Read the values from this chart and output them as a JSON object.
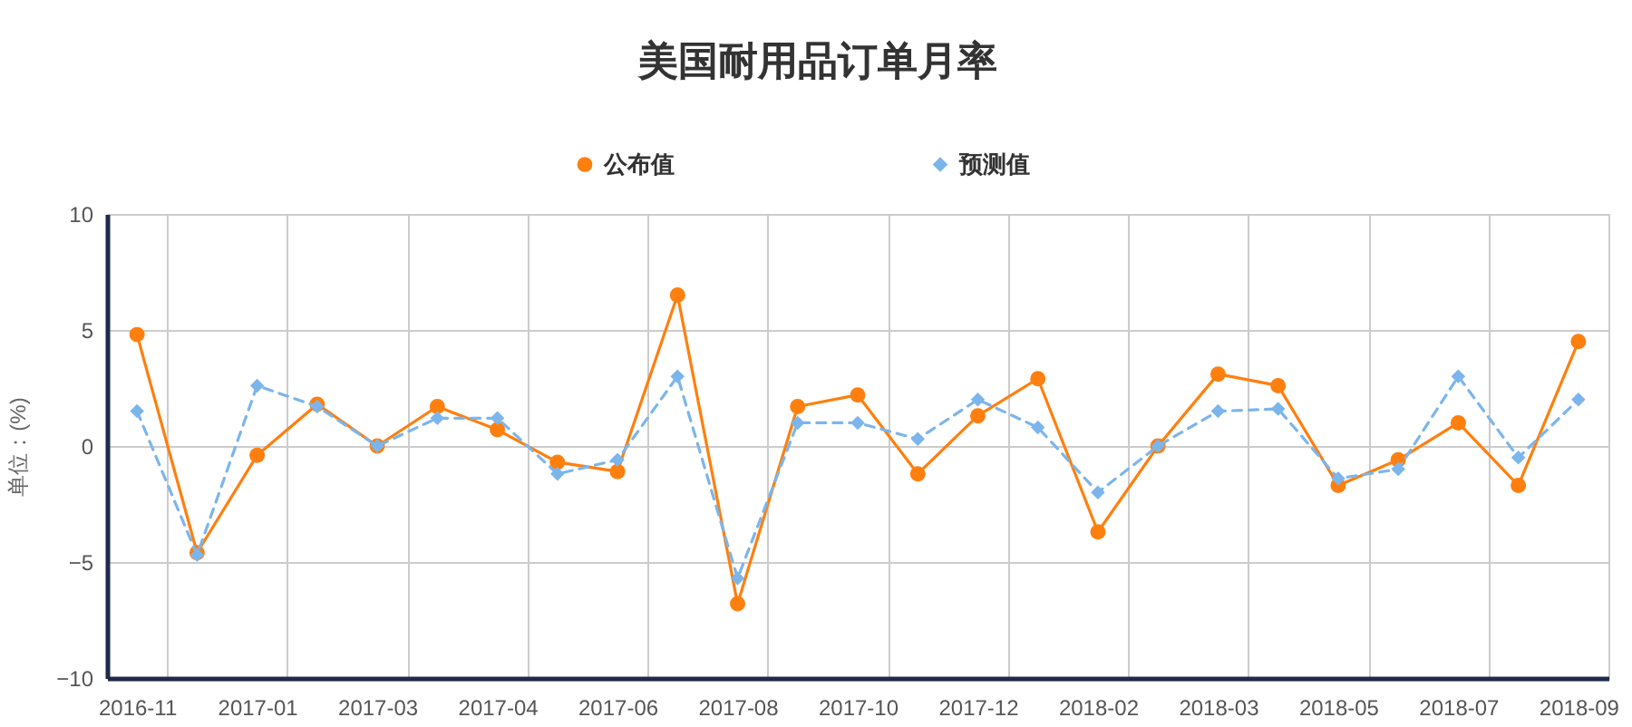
{
  "chart_data": {
    "type": "line",
    "title": "美国耐用品订单月率",
    "ylabel": "单位：(%)",
    "categories": [
      "2016-11",
      null,
      "2017-01",
      null,
      "2017-03",
      null,
      "2017-04",
      null,
      "2017-06",
      null,
      "2017-08",
      null,
      "2017-10",
      null,
      "2017-12",
      null,
      "2018-02",
      null,
      "2018-03",
      null,
      "2018-05",
      null,
      "2018-07",
      null,
      "2018-09"
    ],
    "series": [
      {
        "name": "公布值",
        "color": "#ff7f0e",
        "marker": "circle",
        "line_style": "solid",
        "values": [
          4.8,
          -4.6,
          -0.4,
          1.8,
          0,
          1.7,
          0.7,
          -0.7,
          -1.1,
          6.5,
          -6.8,
          1.7,
          2.2,
          -1.2,
          1.3,
          2.9,
          -3.7,
          0,
          3.1,
          2.6,
          -1.7,
          -0.6,
          1.0,
          -1.7,
          4.5
        ]
      },
      {
        "name": "预测值",
        "color": "#7cb5ec",
        "marker": "diamond",
        "line_style": "dashed",
        "values": [
          1.5,
          -4.7,
          2.6,
          1.7,
          0,
          1.2,
          1.2,
          -1.2,
          -0.6,
          3.0,
          -5.7,
          1.0,
          1.0,
          0.3,
          2.0,
          0.8,
          -2.0,
          0,
          1.5,
          1.6,
          -1.4,
          -1.0,
          3.0,
          -0.5,
          2.0
        ]
      }
    ],
    "ylim": [
      -10,
      10
    ],
    "yticks": [
      -10,
      -5,
      0,
      5,
      10
    ],
    "grid": true,
    "legend": "top"
  }
}
